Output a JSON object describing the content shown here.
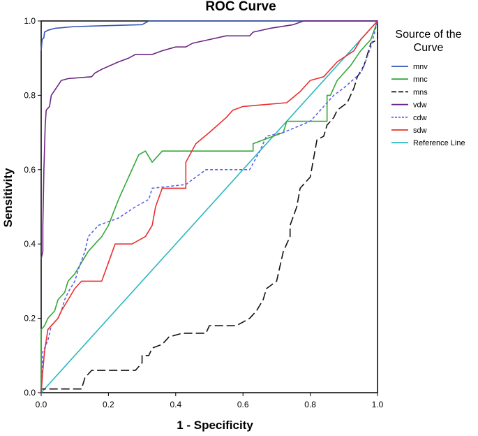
{
  "chart_data": {
    "type": "line",
    "title": "ROC Curve",
    "xlabel": "1 - Specificity",
    "ylabel": "Sensitivity",
    "xlim": [
      0,
      1
    ],
    "ylim": [
      0,
      1
    ],
    "x_ticks": [
      "0.0",
      "0.2",
      "0.4",
      "0.6",
      "0.8",
      "1.0"
    ],
    "y_ticks": [
      "0.0",
      "0.2",
      "0.4",
      "0.6",
      "0.8",
      "1.0"
    ],
    "grid": false,
    "legend": {
      "title_line1": "Source of the",
      "title_line2": "Curve",
      "placement": "right"
    },
    "series": [
      {
        "name": "mnv",
        "color": "#3355b5",
        "dash": "solid",
        "points": [
          [
            0,
            0.92
          ],
          [
            0.003,
            0.95
          ],
          [
            0.008,
            0.955
          ],
          [
            0.01,
            0.97
          ],
          [
            0.02,
            0.975
          ],
          [
            0.04,
            0.98
          ],
          [
            0.1,
            0.985
          ],
          [
            0.3,
            0.99
          ],
          [
            0.32,
            1.0
          ],
          [
            1,
            1
          ]
        ]
      },
      {
        "name": "mnc",
        "color": "#33a838",
        "dash": "solid",
        "points": [
          [
            0,
            0
          ],
          [
            0,
            0.17
          ],
          [
            0.01,
            0.18
          ],
          [
            0.02,
            0.2
          ],
          [
            0.04,
            0.22
          ],
          [
            0.05,
            0.25
          ],
          [
            0.07,
            0.27
          ],
          [
            0.08,
            0.3
          ],
          [
            0.1,
            0.32
          ],
          [
            0.12,
            0.35
          ],
          [
            0.14,
            0.38
          ],
          [
            0.16,
            0.4
          ],
          [
            0.18,
            0.42
          ],
          [
            0.2,
            0.45
          ],
          [
            0.23,
            0.52
          ],
          [
            0.25,
            0.56
          ],
          [
            0.27,
            0.6
          ],
          [
            0.29,
            0.64
          ],
          [
            0.31,
            0.65
          ],
          [
            0.33,
            0.62
          ],
          [
            0.36,
            0.65
          ],
          [
            0.63,
            0.65
          ],
          [
            0.63,
            0.67
          ],
          [
            0.72,
            0.7
          ],
          [
            0.73,
            0.73
          ],
          [
            0.85,
            0.73
          ],
          [
            0.85,
            0.8
          ],
          [
            0.86,
            0.8
          ],
          [
            0.88,
            0.84
          ],
          [
            0.92,
            0.88
          ],
          [
            0.95,
            0.92
          ],
          [
            0.98,
            0.95
          ],
          [
            1,
            1
          ]
        ]
      },
      {
        "name": "mns",
        "color": "#111111",
        "dash": "long",
        "points": [
          [
            0,
            0
          ],
          [
            0,
            0.01
          ],
          [
            0.12,
            0.01
          ],
          [
            0.13,
            0.04
          ],
          [
            0.15,
            0.06
          ],
          [
            0.28,
            0.06
          ],
          [
            0.3,
            0.08
          ],
          [
            0.3,
            0.1
          ],
          [
            0.32,
            0.1
          ],
          [
            0.33,
            0.12
          ],
          [
            0.36,
            0.13
          ],
          [
            0.38,
            0.15
          ],
          [
            0.42,
            0.16
          ],
          [
            0.49,
            0.16
          ],
          [
            0.5,
            0.18
          ],
          [
            0.58,
            0.18
          ],
          [
            0.62,
            0.2
          ],
          [
            0.64,
            0.22
          ],
          [
            0.66,
            0.25
          ],
          [
            0.67,
            0.28
          ],
          [
            0.7,
            0.3
          ],
          [
            0.71,
            0.34
          ],
          [
            0.72,
            0.38
          ],
          [
            0.74,
            0.42
          ],
          [
            0.74,
            0.45
          ],
          [
            0.76,
            0.5
          ],
          [
            0.77,
            0.55
          ],
          [
            0.8,
            0.58
          ],
          [
            0.81,
            0.63
          ],
          [
            0.82,
            0.68
          ],
          [
            0.84,
            0.69
          ],
          [
            0.85,
            0.72
          ],
          [
            0.87,
            0.74
          ],
          [
            0.88,
            0.76
          ],
          [
            0.91,
            0.78
          ],
          [
            0.93,
            0.82
          ],
          [
            0.94,
            0.85
          ],
          [
            0.96,
            0.88
          ],
          [
            0.98,
            0.94
          ],
          [
            1,
            0.95
          ],
          [
            1,
            0.97
          ]
        ]
      },
      {
        "name": "vdw",
        "color": "#6b2583",
        "dash": "solid",
        "points": [
          [
            0,
            0.36
          ],
          [
            0.005,
            0.38
          ],
          [
            0.005,
            0.45
          ],
          [
            0.008,
            0.6
          ],
          [
            0.012,
            0.72
          ],
          [
            0.015,
            0.76
          ],
          [
            0.025,
            0.77
          ],
          [
            0.03,
            0.8
          ],
          [
            0.045,
            0.82
          ],
          [
            0.06,
            0.84
          ],
          [
            0.08,
            0.845
          ],
          [
            0.15,
            0.85
          ],
          [
            0.16,
            0.86
          ],
          [
            0.18,
            0.87
          ],
          [
            0.23,
            0.89
          ],
          [
            0.26,
            0.9
          ],
          [
            0.28,
            0.91
          ],
          [
            0.33,
            0.91
          ],
          [
            0.36,
            0.92
          ],
          [
            0.4,
            0.93
          ],
          [
            0.43,
            0.93
          ],
          [
            0.45,
            0.94
          ],
          [
            0.5,
            0.95
          ],
          [
            0.55,
            0.96
          ],
          [
            0.62,
            0.96
          ],
          [
            0.63,
            0.97
          ],
          [
            0.68,
            0.98
          ],
          [
            0.75,
            0.99
          ],
          [
            0.78,
            1.0
          ],
          [
            1,
            1
          ]
        ]
      },
      {
        "name": "cdw",
        "color": "#5c63e6",
        "dash": "short",
        "points": [
          [
            0,
            0
          ],
          [
            0.005,
            0.11
          ],
          [
            0.01,
            0.12
          ],
          [
            0.02,
            0.14
          ],
          [
            0.03,
            0.18
          ],
          [
            0.05,
            0.2
          ],
          [
            0.06,
            0.22
          ],
          [
            0.07,
            0.25
          ],
          [
            0.08,
            0.27
          ],
          [
            0.1,
            0.3
          ],
          [
            0.11,
            0.33
          ],
          [
            0.13,
            0.38
          ],
          [
            0.14,
            0.42
          ],
          [
            0.17,
            0.45
          ],
          [
            0.2,
            0.46
          ],
          [
            0.23,
            0.47
          ],
          [
            0.28,
            0.5
          ],
          [
            0.32,
            0.52
          ],
          [
            0.33,
            0.55
          ],
          [
            0.43,
            0.56
          ],
          [
            0.46,
            0.58
          ],
          [
            0.49,
            0.6
          ],
          [
            0.62,
            0.6
          ],
          [
            0.65,
            0.65
          ],
          [
            0.67,
            0.69
          ],
          [
            0.72,
            0.7
          ],
          [
            0.8,
            0.73
          ],
          [
            0.83,
            0.76
          ],
          [
            0.87,
            0.8
          ],
          [
            0.9,
            0.82
          ],
          [
            0.95,
            0.86
          ],
          [
            0.96,
            0.88
          ],
          [
            0.98,
            0.93
          ],
          [
            1,
            1
          ]
        ]
      },
      {
        "name": "sdw",
        "color": "#e82f2f",
        "dash": "solid",
        "points": [
          [
            0,
            0
          ],
          [
            0.005,
            0.06
          ],
          [
            0.01,
            0.11
          ],
          [
            0.02,
            0.17
          ],
          [
            0.03,
            0.18
          ],
          [
            0.05,
            0.2
          ],
          [
            0.06,
            0.22
          ],
          [
            0.08,
            0.25
          ],
          [
            0.1,
            0.28
          ],
          [
            0.12,
            0.3
          ],
          [
            0.18,
            0.3
          ],
          [
            0.2,
            0.35
          ],
          [
            0.22,
            0.4
          ],
          [
            0.27,
            0.4
          ],
          [
            0.31,
            0.42
          ],
          [
            0.33,
            0.45
          ],
          [
            0.34,
            0.5
          ],
          [
            0.36,
            0.55
          ],
          [
            0.43,
            0.55
          ],
          [
            0.43,
            0.62
          ],
          [
            0.46,
            0.67
          ],
          [
            0.5,
            0.7
          ],
          [
            0.55,
            0.74
          ],
          [
            0.57,
            0.76
          ],
          [
            0.6,
            0.77
          ],
          [
            0.73,
            0.78
          ],
          [
            0.77,
            0.81
          ],
          [
            0.8,
            0.84
          ],
          [
            0.84,
            0.85
          ],
          [
            0.88,
            0.89
          ],
          [
            0.93,
            0.92
          ],
          [
            0.95,
            0.95
          ],
          [
            0.98,
            0.98
          ],
          [
            1,
            1
          ]
        ]
      },
      {
        "name": "Reference Line",
        "color": "#29b8bf",
        "dash": "solid",
        "points": [
          [
            0,
            0
          ],
          [
            1,
            1
          ]
        ]
      }
    ]
  }
}
